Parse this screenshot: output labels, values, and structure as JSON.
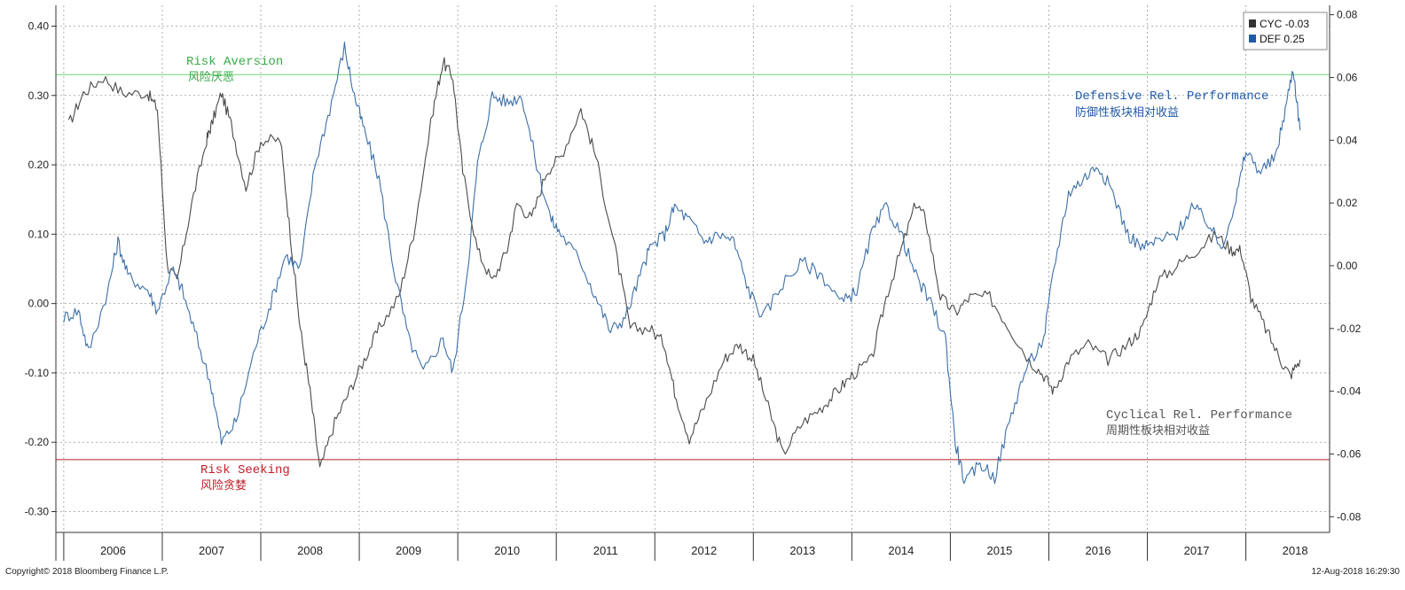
{
  "chart_data": {
    "type": "line",
    "x_categories": [
      "2006",
      "2007",
      "2008",
      "2009",
      "2010",
      "2011",
      "2012",
      "2013",
      "2014",
      "2015",
      "2016",
      "2017",
      "2018"
    ],
    "left_axis": {
      "ylim": [
        -0.33,
        0.43
      ],
      "ticks": [
        "0.40",
        "0.30",
        "0.20",
        "0.10",
        "0.00",
        "-0.10",
        "-0.20",
        "-0.30"
      ]
    },
    "right_axis": {
      "ylim": [
        -0.085,
        0.083
      ],
      "ticks": [
        "0.08",
        "0.06",
        "0.04",
        "0.02",
        "0.00",
        "-0.02",
        "-0.04",
        "-0.06",
        "-0.08"
      ]
    },
    "grid": true,
    "series": [
      {
        "name": "CYC",
        "legend_label": "CYC -0.03",
        "axis": "right",
        "color": "#4a4a4a",
        "points": [
          [
            2006.05,
            0.045
          ],
          [
            2006.2,
            0.055
          ],
          [
            2006.4,
            0.06
          ],
          [
            2006.6,
            0.055
          ],
          [
            2006.85,
            0.055
          ],
          [
            2006.95,
            0.05
          ],
          [
            2007.05,
            0.0
          ],
          [
            2007.15,
            -0.005
          ],
          [
            2007.3,
            0.02
          ],
          [
            2007.45,
            0.04
          ],
          [
            2007.5,
            0.045
          ],
          [
            2007.6,
            0.055
          ],
          [
            2007.7,
            0.045
          ],
          [
            2007.85,
            0.025
          ],
          [
            2008.0,
            0.04
          ],
          [
            2008.2,
            0.04
          ],
          [
            2008.3,
            0.01
          ],
          [
            2008.4,
            -0.02
          ],
          [
            2008.5,
            -0.04
          ],
          [
            2008.6,
            -0.065
          ],
          [
            2008.75,
            -0.05
          ],
          [
            2008.9,
            -0.04
          ],
          [
            2009.05,
            -0.03
          ],
          [
            2009.2,
            -0.02
          ],
          [
            2009.4,
            -0.01
          ],
          [
            2009.55,
            0.01
          ],
          [
            2009.75,
            0.05
          ],
          [
            2009.85,
            0.065
          ],
          [
            2009.95,
            0.06
          ],
          [
            2010.05,
            0.03
          ],
          [
            2010.2,
            0.005
          ],
          [
            2010.35,
            -0.005
          ],
          [
            2010.5,
            0.005
          ],
          [
            2010.6,
            0.02
          ],
          [
            2010.75,
            0.015
          ],
          [
            2010.9,
            0.03
          ],
          [
            2011.05,
            0.035
          ],
          [
            2011.25,
            0.05
          ],
          [
            2011.4,
            0.035
          ],
          [
            2011.6,
            0.005
          ],
          [
            2011.75,
            -0.02
          ],
          [
            2011.95,
            -0.02
          ],
          [
            2012.1,
            -0.025
          ],
          [
            2012.2,
            -0.04
          ],
          [
            2012.35,
            -0.055
          ],
          [
            2012.5,
            -0.045
          ],
          [
            2012.7,
            -0.03
          ],
          [
            2012.85,
            -0.025
          ],
          [
            2013.0,
            -0.03
          ],
          [
            2013.15,
            -0.045
          ],
          [
            2013.3,
            -0.06
          ],
          [
            2013.5,
            -0.05
          ],
          [
            2013.7,
            -0.045
          ],
          [
            2013.85,
            -0.04
          ],
          [
            2014.0,
            -0.035
          ],
          [
            2014.2,
            -0.03
          ],
          [
            2014.35,
            -0.01
          ],
          [
            2014.5,
            0.005
          ],
          [
            2014.65,
            0.02
          ],
          [
            2014.75,
            0.015
          ],
          [
            2014.9,
            -0.01
          ],
          [
            2015.05,
            -0.015
          ],
          [
            2015.2,
            -0.01
          ],
          [
            2015.4,
            -0.01
          ],
          [
            2015.6,
            -0.02
          ],
          [
            2015.8,
            -0.03
          ],
          [
            2015.95,
            -0.035
          ],
          [
            2016.05,
            -0.04
          ],
          [
            2016.2,
            -0.03
          ],
          [
            2016.4,
            -0.025
          ],
          [
            2016.6,
            -0.03
          ],
          [
            2016.8,
            -0.025
          ],
          [
            2016.95,
            -0.02
          ],
          [
            2017.1,
            -0.005
          ],
          [
            2017.3,
            0.0
          ],
          [
            2017.5,
            0.005
          ],
          [
            2017.7,
            0.01
          ],
          [
            2017.85,
            0.005
          ],
          [
            2017.95,
            0.005
          ],
          [
            2018.05,
            -0.01
          ],
          [
            2018.2,
            -0.02
          ],
          [
            2018.35,
            -0.03
          ],
          [
            2018.45,
            -0.035
          ],
          [
            2018.55,
            -0.03
          ]
        ]
      },
      {
        "name": "DEF",
        "legend_label": "DEF 0.25",
        "axis": "left",
        "color": "#3c6fa8",
        "points": [
          [
            2006.0,
            -0.02
          ],
          [
            2006.15,
            -0.01
          ],
          [
            2006.25,
            -0.07
          ],
          [
            2006.45,
            0.02
          ],
          [
            2006.55,
            0.09
          ],
          [
            2006.65,
            0.04
          ],
          [
            2006.85,
            0.02
          ],
          [
            2006.95,
            -0.01
          ],
          [
            2007.1,
            0.05
          ],
          [
            2007.2,
            0.02
          ],
          [
            2007.35,
            -0.05
          ],
          [
            2007.5,
            -0.12
          ],
          [
            2007.6,
            -0.2
          ],
          [
            2007.75,
            -0.17
          ],
          [
            2007.95,
            -0.06
          ],
          [
            2008.1,
            0.0
          ],
          [
            2008.25,
            0.07
          ],
          [
            2008.4,
            0.05
          ],
          [
            2008.55,
            0.2
          ],
          [
            2008.7,
            0.28
          ],
          [
            2008.85,
            0.37
          ],
          [
            2008.95,
            0.3
          ],
          [
            2009.05,
            0.25
          ],
          [
            2009.2,
            0.18
          ],
          [
            2009.35,
            0.05
          ],
          [
            2009.5,
            -0.05
          ],
          [
            2009.65,
            -0.1
          ],
          [
            2009.85,
            -0.05
          ],
          [
            2009.95,
            -0.1
          ],
          [
            2010.1,
            0.05
          ],
          [
            2010.2,
            0.2
          ],
          [
            2010.35,
            0.3
          ],
          [
            2010.5,
            0.29
          ],
          [
            2010.65,
            0.3
          ],
          [
            2010.8,
            0.2
          ],
          [
            2010.95,
            0.12
          ],
          [
            2011.05,
            0.1
          ],
          [
            2011.25,
            0.06
          ],
          [
            2011.4,
            0.01
          ],
          [
            2011.55,
            -0.04
          ],
          [
            2011.7,
            -0.02
          ],
          [
            2011.85,
            0.04
          ],
          [
            2011.95,
            0.08
          ],
          [
            2012.1,
            0.1
          ],
          [
            2012.2,
            0.14
          ],
          [
            2012.35,
            0.12
          ],
          [
            2012.5,
            0.09
          ],
          [
            2012.65,
            0.1
          ],
          [
            2012.8,
            0.09
          ],
          [
            2012.95,
            0.02
          ],
          [
            2013.1,
            -0.02
          ],
          [
            2013.3,
            0.03
          ],
          [
            2013.5,
            0.06
          ],
          [
            2013.7,
            0.04
          ],
          [
            2013.9,
            0.0
          ],
          [
            2014.05,
            0.02
          ],
          [
            2014.2,
            0.1
          ],
          [
            2014.35,
            0.14
          ],
          [
            2014.5,
            0.1
          ],
          [
            2014.65,
            0.04
          ],
          [
            2014.8,
            0.0
          ],
          [
            2014.95,
            -0.05
          ],
          [
            2015.05,
            -0.2
          ],
          [
            2015.15,
            -0.26
          ],
          [
            2015.3,
            -0.23
          ],
          [
            2015.45,
            -0.25
          ],
          [
            2015.6,
            -0.17
          ],
          [
            2015.75,
            -0.1
          ],
          [
            2015.95,
            -0.05
          ],
          [
            2016.05,
            0.05
          ],
          [
            2016.2,
            0.16
          ],
          [
            2016.35,
            0.18
          ],
          [
            2016.5,
            0.2
          ],
          [
            2016.65,
            0.16
          ],
          [
            2016.8,
            0.1
          ],
          [
            2016.95,
            0.08
          ],
          [
            2017.1,
            0.09
          ],
          [
            2017.3,
            0.1
          ],
          [
            2017.45,
            0.14
          ],
          [
            2017.6,
            0.12
          ],
          [
            2017.75,
            0.08
          ],
          [
            2017.9,
            0.15
          ],
          [
            2018.0,
            0.22
          ],
          [
            2018.15,
            0.19
          ],
          [
            2018.3,
            0.21
          ],
          [
            2018.4,
            0.28
          ],
          [
            2018.48,
            0.34
          ],
          [
            2018.55,
            0.25
          ]
        ]
      }
    ],
    "reference_lines": [
      {
        "key": "risk_aversion",
        "value": 0.33,
        "axis": "left",
        "color": "#7dd87d"
      },
      {
        "key": "risk_seeking",
        "value": -0.225,
        "axis": "left",
        "color": "#c0393b"
      }
    ],
    "legend_position": "top-right"
  },
  "legend": {
    "cyc": {
      "label": "CYC -0.03",
      "color": "#333333"
    },
    "def": {
      "label": "DEF 0.25",
      "color": "#1f5aa6"
    }
  },
  "annotations": {
    "risk_aversion_en": "Risk Aversion",
    "risk_aversion_zh": "风险厌恶",
    "risk_seeking_en": "Risk Seeking",
    "risk_seeking_zh": "风险贪婪",
    "defensive_en": "Defensive Rel. Performance",
    "defensive_zh": "防御性板块相对收益",
    "cyclical_en": "Cyclical Rel. Performance",
    "cyclical_zh": "周期性板块相对收益"
  },
  "colors": {
    "risk_aversion_text": "#3aa84a",
    "risk_seeking_text": "#c0202a",
    "defensive_text": "#1f5aa6",
    "cyclical_text": "#555555"
  },
  "footer": {
    "copyright": "Copyright© 2018 Bloomberg Finance L.P.",
    "timestamp": "12-Aug-2018 16:29:30"
  }
}
